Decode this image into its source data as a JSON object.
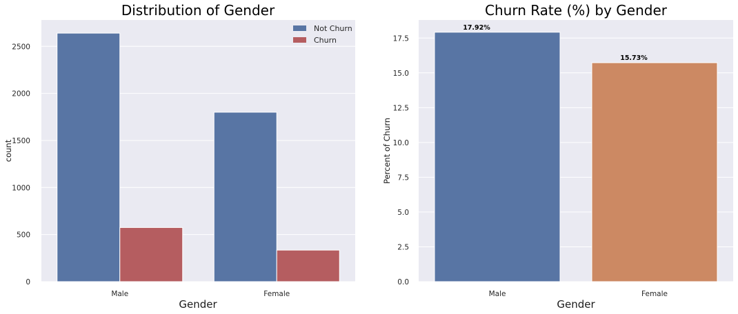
{
  "chart_data": [
    {
      "type": "bar",
      "title": "Distribution of Gender",
      "xlabel": "Gender",
      "ylabel": "count",
      "categories": [
        "Male",
        "Female"
      ],
      "series": [
        {
          "name": "Not Churn",
          "color": "#5875a4",
          "values": [
            2640,
            1800
          ]
        },
        {
          "name": "Churn",
          "color": "#b55d60",
          "values": [
            575,
            335
          ]
        }
      ],
      "ylim": [
        0,
        2780
      ],
      "yticks": [
        0,
        500,
        1000,
        1500,
        2000,
        2500
      ],
      "ytick_labels": [
        "0",
        "500",
        "1000",
        "1500",
        "2000",
        "2500"
      ],
      "legend": {
        "position": "top-right",
        "entries": [
          "Not Churn",
          "Churn"
        ]
      },
      "grid": true,
      "background": "#eaeaf2"
    },
    {
      "type": "bar",
      "title": "Churn Rate (%) by Gender",
      "xlabel": "Gender",
      "ylabel": "Percent of Churn",
      "categories": [
        "Male",
        "Female"
      ],
      "values": [
        17.92,
        15.73
      ],
      "value_labels": [
        "17.92%",
        "15.73%"
      ],
      "colors": [
        "#5875a4",
        "#cc8963"
      ],
      "ylim": [
        0,
        18.8
      ],
      "yticks": [
        0,
        2.5,
        5,
        7.5,
        10,
        12.5,
        15,
        17.5
      ],
      "ytick_labels": [
        "0.0",
        "2.5",
        "5.0",
        "7.5",
        "10.0",
        "12.5",
        "15.0",
        "17.5"
      ],
      "grid": true,
      "background": "#eaeaf2"
    }
  ]
}
